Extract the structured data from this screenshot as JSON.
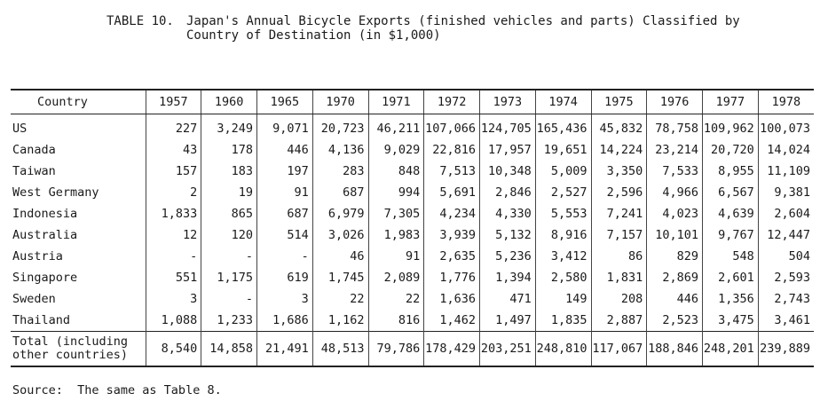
{
  "title": {
    "label": "TABLE 10.",
    "line1": "Japan's Annual Bicycle Exports (finished vehicles and parts) Classified by",
    "line2": "Country of Destination (in $1,000)"
  },
  "table": {
    "header": [
      "Country",
      "1957",
      "1960",
      "1965",
      "1970",
      "1971",
      "1972",
      "1973",
      "1974",
      "1975",
      "1976",
      "1977",
      "1978"
    ],
    "rows": [
      {
        "country": "US",
        "values": [
          "227",
          "3,249",
          "9,071",
          "20,723",
          "46,211",
          "107,066",
          "124,705",
          "165,436",
          "45,832",
          "78,758",
          "109,962",
          "100,073"
        ]
      },
      {
        "country": "Canada",
        "values": [
          "43",
          "178",
          "446",
          "4,136",
          "9,029",
          "22,816",
          "17,957",
          "19,651",
          "14,224",
          "23,214",
          "20,720",
          "14,024"
        ]
      },
      {
        "country": "Taiwan",
        "values": [
          "157",
          "183",
          "197",
          "283",
          "848",
          "7,513",
          "10,348",
          "5,009",
          "3,350",
          "7,533",
          "8,955",
          "11,109"
        ]
      },
      {
        "country": "West Germany",
        "values": [
          "2",
          "19",
          "91",
          "687",
          "994",
          "5,691",
          "2,846",
          "2,527",
          "2,596",
          "4,966",
          "6,567",
          "9,381"
        ]
      },
      {
        "country": "Indonesia",
        "values": [
          "1,833",
          "865",
          "687",
          "6,979",
          "7,305",
          "4,234",
          "4,330",
          "5,553",
          "7,241",
          "4,023",
          "4,639",
          "2,604"
        ]
      },
      {
        "country": "Australia",
        "values": [
          "12",
          "120",
          "514",
          "3,026",
          "1,983",
          "3,939",
          "5,132",
          "8,916",
          "7,157",
          "10,101",
          "9,767",
          "12,447"
        ]
      },
      {
        "country": "Austria",
        "values": [
          "-",
          "-",
          "-",
          "46",
          "91",
          "2,635",
          "5,236",
          "3,412",
          "86",
          "829",
          "548",
          "504"
        ]
      },
      {
        "country": "Singapore",
        "values": [
          "551",
          "1,175",
          "619",
          "1,745",
          "2,089",
          "1,776",
          "1,394",
          "2,580",
          "1,831",
          "2,869",
          "2,601",
          "2,593"
        ]
      },
      {
        "country": "Sweden",
        "values": [
          "3",
          "-",
          "3",
          "22",
          "22",
          "1,636",
          "471",
          "149",
          "208",
          "446",
          "1,356",
          "2,743"
        ]
      },
      {
        "country": "Thailand",
        "values": [
          "1,088",
          "1,233",
          "1,686",
          "1,162",
          "816",
          "1,462",
          "1,497",
          "1,835",
          "2,887",
          "2,523",
          "3,475",
          "3,461"
        ]
      }
    ],
    "total": {
      "label": "Total (including\nother countries)",
      "values": [
        "8,540",
        "14,858",
        "21,491",
        "48,513",
        "79,786",
        "178,429",
        "203,251",
        "248,810",
        "117,067",
        "188,846",
        "248,201",
        "239,889"
      ]
    }
  },
  "source": "Source:  The same as Table 8."
}
